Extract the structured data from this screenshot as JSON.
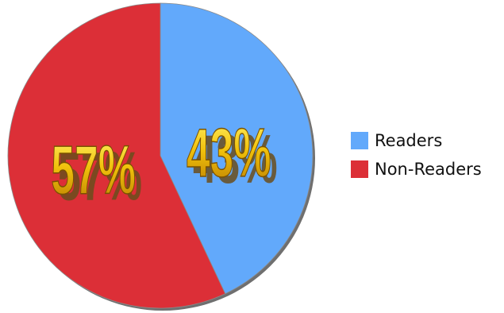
{
  "chart_data": {
    "type": "pie",
    "title": "",
    "slices": [
      {
        "name": "Readers",
        "value": 43,
        "label": "43%",
        "color": "#62a9fb"
      },
      {
        "name": "Non-Readers",
        "value": 57,
        "label": "57%",
        "color": "#dc2f37"
      }
    ],
    "legend_position": "right"
  },
  "legend": {
    "items": [
      {
        "label": "Readers",
        "color": "#62a9fb"
      },
      {
        "label": "Non-Readers",
        "color": "#dc2f37"
      }
    ]
  }
}
